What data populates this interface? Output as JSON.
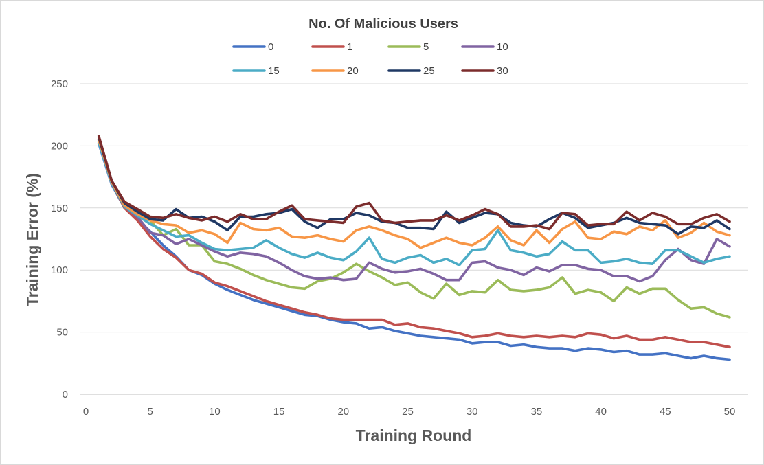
{
  "chart_data": {
    "type": "line",
    "title": "",
    "xlabel": "Training Round",
    "ylabel": "Training Error (%)",
    "xlim": [
      0,
      50
    ],
    "ylim": [
      0,
      250
    ],
    "x_ticks": [
      0,
      5,
      10,
      15,
      20,
      25,
      30,
      35,
      40,
      45,
      50
    ],
    "y_ticks": [
      0,
      50,
      100,
      150,
      200,
      250
    ],
    "grid": "horizontal",
    "legend": {
      "title": "No. Of Malicious Users",
      "placement": "top"
    },
    "x": [
      1,
      2,
      3,
      4,
      5,
      6,
      7,
      8,
      9,
      10,
      11,
      12,
      13,
      14,
      15,
      16,
      17,
      18,
      19,
      20,
      21,
      22,
      23,
      24,
      25,
      26,
      27,
      28,
      29,
      30,
      31,
      32,
      33,
      34,
      35,
      36,
      37,
      38,
      39,
      40,
      41,
      42,
      43,
      44,
      45,
      46,
      47,
      48,
      49,
      50
    ],
    "series": [
      {
        "name": "0",
        "color": "#4472c4",
        "values": [
          202,
          169,
          150,
          141,
          131,
          120,
          111,
          100,
          96,
          89,
          84,
          80,
          76,
          73,
          70,
          67,
          64,
          63,
          60,
          58,
          57,
          53,
          54,
          51,
          49,
          47,
          46,
          45,
          44,
          41,
          42,
          42,
          39,
          40,
          38,
          37,
          37,
          35,
          37,
          36,
          34,
          35,
          32,
          32,
          33,
          31,
          29,
          31,
          29,
          28
        ]
      },
      {
        "name": "1",
        "color": "#c0504d",
        "values": [
          205,
          170,
          150,
          140,
          127,
          117,
          110,
          100,
          97,
          90,
          87,
          83,
          79,
          75,
          72,
          69,
          66,
          64,
          61,
          60,
          60,
          60,
          60,
          56,
          57,
          54,
          53,
          51,
          49,
          46,
          47,
          49,
          47,
          46,
          47,
          46,
          47,
          46,
          49,
          48,
          45,
          47,
          44,
          44,
          46,
          44,
          42,
          42,
          40,
          38
        ]
      },
      {
        "name": "5",
        "color": "#9bbb59",
        "values": [
          204,
          170,
          152,
          144,
          140,
          128,
          133,
          120,
          120,
          107,
          105,
          101,
          96,
          92,
          89,
          86,
          85,
          91,
          93,
          98,
          105,
          99,
          94,
          88,
          90,
          82,
          77,
          89,
          80,
          83,
          82,
          92,
          84,
          83,
          84,
          86,
          94,
          81,
          84,
          82,
          75,
          86,
          81,
          85,
          85,
          76,
          69,
          70,
          65,
          62
        ]
      },
      {
        "name": "10",
        "color": "#8064a2",
        "values": [
          204,
          171,
          151,
          143,
          130,
          128,
          121,
          125,
          120,
          115,
          111,
          114,
          113,
          111,
          106,
          100,
          95,
          93,
          94,
          92,
          93,
          106,
          101,
          98,
          99,
          101,
          97,
          92,
          92,
          106,
          107,
          102,
          100,
          96,
          102,
          99,
          104,
          104,
          101,
          100,
          95,
          95,
          91,
          95,
          108,
          117,
          108,
          105,
          125,
          119
        ]
      },
      {
        "name": "15",
        "color": "#4bacc6",
        "values": [
          203,
          170,
          151,
          144,
          137,
          132,
          127,
          128,
          122,
          117,
          116,
          117,
          118,
          124,
          118,
          113,
          110,
          114,
          110,
          108,
          115,
          126,
          109,
          106,
          110,
          112,
          106,
          109,
          104,
          116,
          117,
          132,
          116,
          114,
          111,
          113,
          123,
          116,
          116,
          106,
          107,
          109,
          106,
          105,
          116,
          116,
          111,
          106,
          109,
          111
        ]
      },
      {
        "name": "20",
        "color": "#f79646",
        "values": [
          205,
          171,
          152,
          145,
          140,
          137,
          136,
          130,
          132,
          129,
          122,
          138,
          133,
          132,
          134,
          127,
          126,
          128,
          125,
          123,
          132,
          135,
          132,
          128,
          125,
          118,
          122,
          126,
          122,
          120,
          126,
          135,
          124,
          120,
          132,
          122,
          133,
          139,
          126,
          125,
          131,
          129,
          135,
          132,
          140,
          126,
          130,
          138,
          131,
          128
        ]
      },
      {
        "name": "25",
        "color": "#1f3864",
        "values": [
          207,
          172,
          154,
          147,
          141,
          140,
          149,
          142,
          143,
          139,
          132,
          143,
          143,
          145,
          146,
          149,
          139,
          134,
          141,
          141,
          146,
          144,
          139,
          138,
          134,
          134,
          133,
          147,
          138,
          142,
          146,
          145,
          138,
          136,
          135,
          141,
          146,
          142,
          134,
          136,
          138,
          142,
          138,
          137,
          136,
          129,
          135,
          134,
          140,
          133
        ]
      },
      {
        "name": "30",
        "color": "#7b2c2c",
        "values": [
          208,
          172,
          155,
          149,
          143,
          142,
          145,
          142,
          140,
          143,
          139,
          145,
          141,
          141,
          147,
          152,
          141,
          140,
          139,
          138,
          151,
          154,
          140,
          138,
          139,
          140,
          140,
          144,
          140,
          144,
          149,
          145,
          135,
          135,
          136,
          133,
          146,
          145,
          136,
          137,
          137,
          147,
          140,
          146,
          143,
          137,
          137,
          142,
          145,
          139
        ]
      }
    ]
  }
}
